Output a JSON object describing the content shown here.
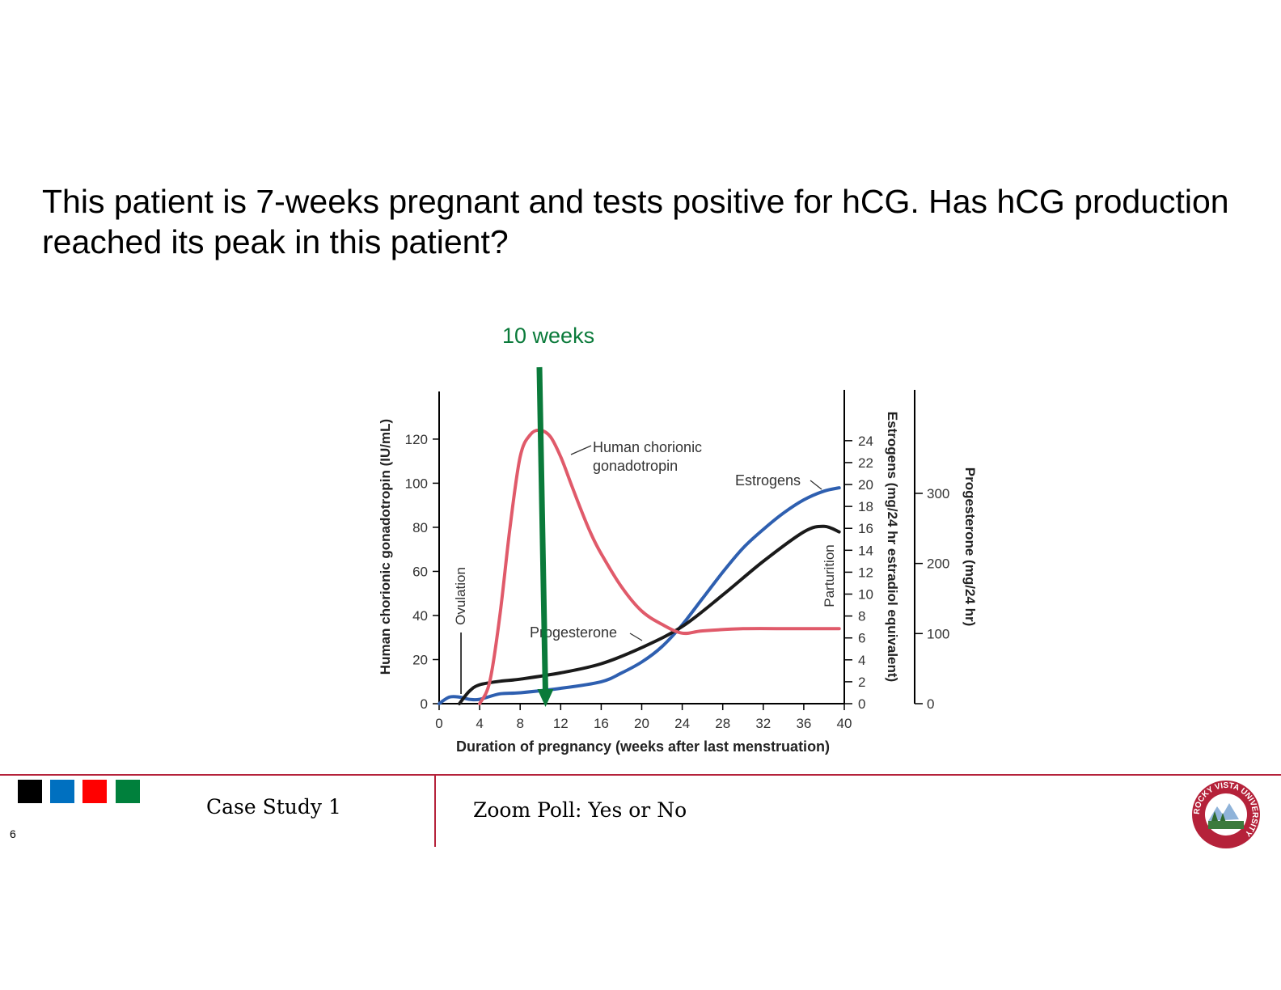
{
  "slide": {
    "question": "This patient is 7-weeks pregnant and tests positive for hCG.  Has hCG production reached its peak in this patient?",
    "page_number": "6"
  },
  "annotation": {
    "label": "10 weeks",
    "x_week": 10.5,
    "color": "#0a7a3a"
  },
  "footer": {
    "section": "Case Study 1",
    "prompt": "Zoom Poll: Yes or No",
    "color_squares": [
      "#000000",
      "#0070c0",
      "#ff0000",
      "#00803c"
    ],
    "rule_color": "#b5223a",
    "logo_text": "ROCKY VISTA UNIVERSITY"
  },
  "chart_data": {
    "type": "line",
    "xlabel": "Duration of pregnancy (weeks after last menstruation)",
    "x_ticks": [
      0,
      4,
      8,
      12,
      16,
      20,
      24,
      28,
      32,
      36,
      40
    ],
    "xlim": [
      0,
      40
    ],
    "axes": {
      "hcg": {
        "label": "Human chorionic gonadotropin (IU/mL)",
        "ticks": [
          0,
          20,
          40,
          60,
          80,
          100,
          120
        ],
        "lim": [
          0,
          124
        ]
      },
      "estrogens": {
        "label": "Estrogens (mg/24 hr estradiol equivalent)",
        "ticks": [
          0,
          2,
          4,
          6,
          8,
          10,
          12,
          14,
          16,
          18,
          20,
          22,
          24
        ],
        "lim": [
          0,
          24.8
        ]
      },
      "progesterone": {
        "label": "Progesterone (mg/24 hr)",
        "ticks": [
          0,
          100,
          200,
          300
        ],
        "lim": [
          0,
          413
        ]
      }
    },
    "markers": [
      {
        "label": "Ovulation",
        "x": 2
      },
      {
        "label": "Parturition",
        "x": 38
      }
    ],
    "series": [
      {
        "name": "Human chorionic gonadotropin",
        "axis": "hcg",
        "color": "#e05a6a",
        "x": [
          4,
          5,
          6,
          7,
          8,
          9,
          10,
          11,
          12,
          13,
          14,
          15,
          16,
          18,
          20,
          22,
          24,
          26,
          30,
          35,
          39.5
        ],
        "y": [
          0,
          10,
          40,
          80,
          112,
          122,
          124,
          121,
          112,
          100,
          88,
          77,
          68,
          53,
          42,
          36,
          32,
          33,
          34,
          34,
          34
        ]
      },
      {
        "name": "Estrogens",
        "axis": "estrogens",
        "color": "#2e5fb0",
        "x": [
          0,
          1,
          2,
          3,
          4,
          6,
          8,
          12,
          16,
          18,
          20,
          22,
          24,
          26,
          28,
          30,
          32,
          34,
          36,
          38,
          39.5
        ],
        "y": [
          0,
          0.6,
          0.6,
          0.4,
          0.4,
          0.9,
          1.0,
          1.4,
          2.0,
          2.8,
          3.8,
          5.2,
          7.2,
          9.6,
          12.0,
          14.2,
          15.9,
          17.4,
          18.6,
          19.4,
          19.7
        ]
      },
      {
        "name": "Progesterone",
        "axis": "progesterone",
        "color": "#1a1a1a",
        "x": [
          2,
          3,
          4,
          6,
          8,
          12,
          16,
          20,
          24,
          28,
          32,
          36,
          38,
          39.5
        ],
        "y": [
          0,
          18,
          27,
          32,
          35,
          44,
          57,
          80,
          110,
          155,
          203,
          245,
          253,
          245
        ]
      }
    ],
    "series_labels": [
      {
        "text_lines": [
          "Human chorionic",
          "gonadotropin"
        ],
        "series": "Human chorionic gonadotropin"
      },
      {
        "text_lines": [
          "Estrogens"
        ],
        "series": "Estrogens"
      },
      {
        "text_lines": [
          "Progesterone"
        ],
        "series": "Progesterone"
      }
    ]
  }
}
